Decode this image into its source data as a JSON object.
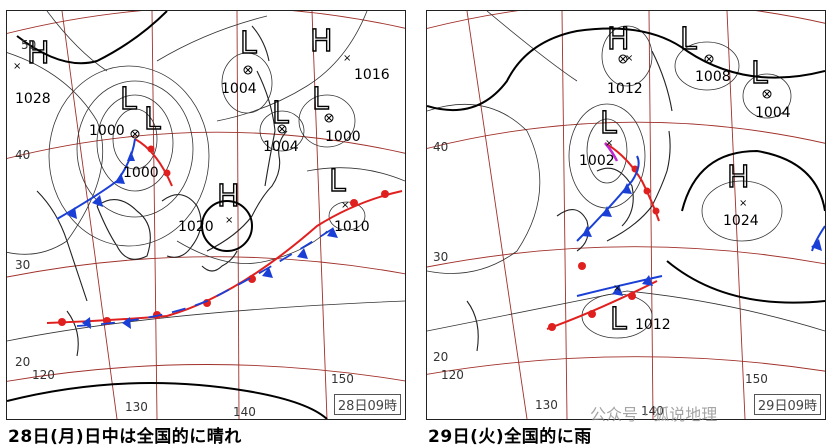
{
  "left_map": {
    "caption": "28日(月)日中は全国的に晴れ",
    "timestamp": "28日09時",
    "centers": [
      "H",
      "L",
      "L",
      "H",
      "L",
      "L",
      "L",
      "H",
      "L"
    ],
    "pressures": [
      "1028",
      "1000",
      "1000",
      "1004",
      "1004",
      "1000",
      "1016",
      "1020",
      "1010"
    ],
    "lat_labels": [
      "50",
      "40",
      "30",
      "20"
    ],
    "lon_labels": [
      "120",
      "130",
      "140",
      "150"
    ]
  },
  "right_map": {
    "caption": "29日(火)全国的に雨",
    "timestamp": "29日09時",
    "centers": [
      "H",
      "L",
      "L",
      "L",
      "H",
      "L"
    ],
    "pressures": [
      "1012",
      "1008",
      "1004",
      "1002",
      "1024",
      "1012"
    ],
    "lat_labels": [
      "40",
      "30",
      "20"
    ],
    "lon_labels": [
      "120",
      "130",
      "140",
      "150"
    ]
  },
  "colors": {
    "front_warm": "#e0201f",
    "front_cold": "#1a3fd6",
    "front_occluded": "#c026d3",
    "grid": "#a0302a"
  },
  "watermark": "公众号 · 狐说地理"
}
